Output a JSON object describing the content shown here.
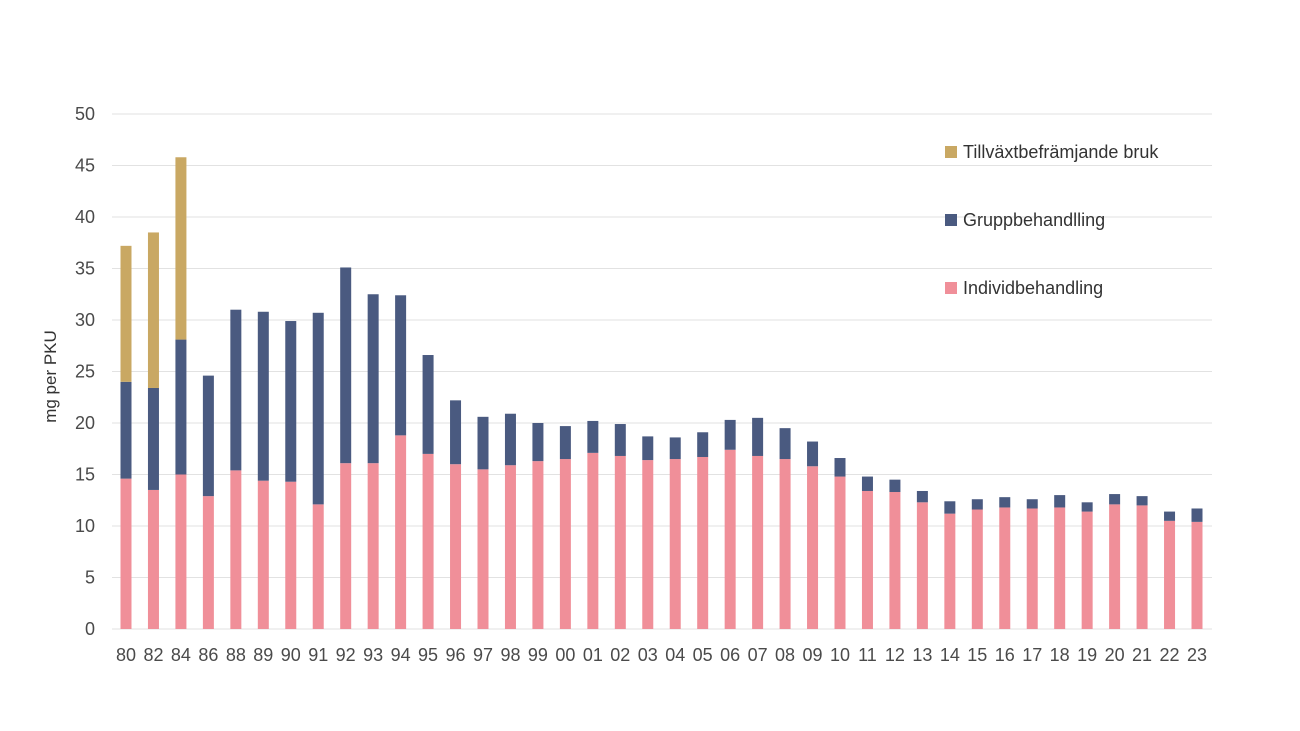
{
  "chart_data": {
    "type": "bar",
    "stacked": true,
    "ylabel": "mg per PKU",
    "xlabel": "",
    "ylim": [
      0,
      50
    ],
    "yticks": [
      0,
      5,
      10,
      15,
      20,
      25,
      30,
      35,
      40,
      45,
      50
    ],
    "grid": true,
    "legend_position": "top-right",
    "categories": [
      "80",
      "82",
      "84",
      "86",
      "88",
      "89",
      "90",
      "91",
      "92",
      "93",
      "94",
      "95",
      "96",
      "97",
      "98",
      "99",
      "00",
      "01",
      "02",
      "03",
      "04",
      "05",
      "06",
      "07",
      "08",
      "09",
      "10",
      "11",
      "12",
      "13",
      "14",
      "15",
      "16",
      "17",
      "18",
      "19",
      "20",
      "21",
      "22",
      "23"
    ],
    "series": [
      {
        "name": "Individbehandling",
        "color": "#f08f99",
        "values": [
          14.6,
          13.5,
          15.0,
          12.9,
          15.4,
          14.4,
          14.3,
          12.1,
          16.1,
          16.1,
          18.8,
          17.0,
          16.0,
          15.5,
          15.9,
          16.3,
          16.5,
          17.1,
          16.8,
          16.4,
          16.5,
          16.7,
          17.4,
          16.8,
          16.5,
          15.8,
          14.8,
          13.4,
          13.3,
          12.3,
          11.2,
          11.6,
          11.8,
          11.7,
          11.8,
          11.4,
          12.1,
          12.0,
          10.5,
          10.4
        ]
      },
      {
        "name": "Gruppbehandlling",
        "color": "#4a5a80",
        "values": [
          9.4,
          9.9,
          13.1,
          11.7,
          15.6,
          16.4,
          15.6,
          18.6,
          19.0,
          16.4,
          13.6,
          9.6,
          6.2,
          5.1,
          5.0,
          3.7,
          3.2,
          3.1,
          3.1,
          2.3,
          2.1,
          2.4,
          2.9,
          3.7,
          3.0,
          2.4,
          1.8,
          1.4,
          1.2,
          1.1,
          1.2,
          1.0,
          1.0,
          0.9,
          1.2,
          0.9,
          1.0,
          0.9,
          0.9,
          1.3
        ]
      },
      {
        "name": "Tillväxtbefrämjande bruk",
        "color": "#c9a863",
        "values": [
          13.2,
          15.1,
          17.7,
          0,
          0,
          0,
          0,
          0,
          0,
          0,
          0,
          0,
          0,
          0,
          0,
          0,
          0,
          0,
          0,
          0,
          0,
          0,
          0,
          0,
          0,
          0,
          0,
          0,
          0,
          0,
          0,
          0,
          0,
          0,
          0,
          0,
          0,
          0,
          0,
          0
        ]
      }
    ]
  }
}
